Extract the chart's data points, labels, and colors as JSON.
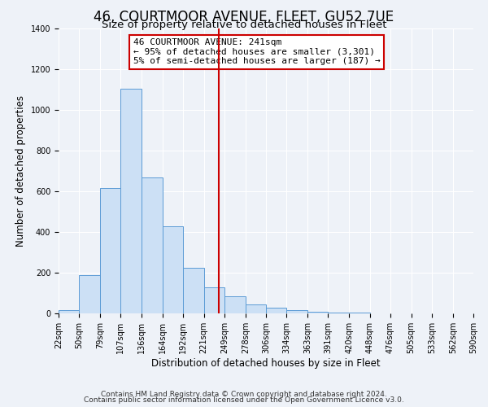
{
  "title": "46, COURTMOOR AVENUE, FLEET, GU52 7UE",
  "subtitle": "Size of property relative to detached houses in Fleet",
  "xlabel": "Distribution of detached houses by size in Fleet",
  "ylabel": "Number of detached properties",
  "bar_left_edges": [
    22,
    50,
    79,
    107,
    136,
    164,
    192,
    221,
    249,
    278,
    306,
    334,
    363,
    391,
    420,
    448,
    476,
    505,
    533,
    562
  ],
  "bar_widths": [
    28,
    29,
    28,
    29,
    28,
    28,
    29,
    28,
    29,
    28,
    28,
    29,
    28,
    29,
    28,
    28,
    29,
    28,
    29,
    28
  ],
  "bar_heights": [
    15,
    190,
    615,
    1105,
    670,
    430,
    225,
    130,
    85,
    45,
    28,
    18,
    10,
    5,
    3,
    0,
    0,
    0,
    0,
    0
  ],
  "bar_color": "#cce0f5",
  "bar_edgecolor": "#5b9bd5",
  "tick_labels": [
    "22sqm",
    "50sqm",
    "79sqm",
    "107sqm",
    "136sqm",
    "164sqm",
    "192sqm",
    "221sqm",
    "249sqm",
    "278sqm",
    "306sqm",
    "334sqm",
    "363sqm",
    "391sqm",
    "420sqm",
    "448sqm",
    "476sqm",
    "505sqm",
    "533sqm",
    "562sqm",
    "590sqm"
  ],
  "tick_positions": [
    22,
    50,
    79,
    107,
    136,
    164,
    192,
    221,
    249,
    278,
    306,
    334,
    363,
    391,
    420,
    448,
    476,
    505,
    533,
    562,
    590
  ],
  "ylim": [
    0,
    1400
  ],
  "yticks": [
    0,
    200,
    400,
    600,
    800,
    1000,
    1200,
    1400
  ],
  "vline_x": 241,
  "vline_color": "#cc0000",
  "annotation_title": "46 COURTMOOR AVENUE: 241sqm",
  "annotation_line1": "← 95% of detached houses are smaller (3,301)",
  "annotation_line2": "5% of semi-detached houses are larger (187) →",
  "footer1": "Contains HM Land Registry data © Crown copyright and database right 2024.",
  "footer2": "Contains public sector information licensed under the Open Government Licence v3.0.",
  "bg_color": "#eef2f8",
  "grid_color": "#ffffff",
  "title_fontsize": 12,
  "subtitle_fontsize": 9.5,
  "axis_label_fontsize": 8.5,
  "tick_fontsize": 7,
  "footer_fontsize": 6.5,
  "annot_fontsize": 8
}
